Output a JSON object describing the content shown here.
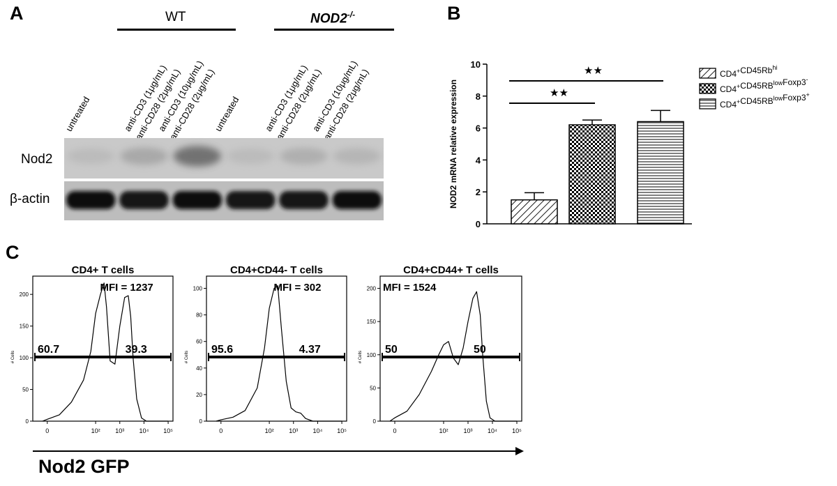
{
  "panelA": {
    "letter": "A",
    "groups": [
      {
        "label": "WT",
        "italic": false
      },
      {
        "label": "NOD2",
        "sup": "-/-",
        "italic": true
      }
    ],
    "lanes": [
      {
        "line1": "untreated",
        "line2": ""
      },
      {
        "line1": "anti-CD3 (1μg/mL)",
        "line2": "anti-CD28 (2μg/mL)"
      },
      {
        "line1": "anti-CD3 (10μg/mL)",
        "line2": "anti-CD28 (2μg/mL)"
      },
      {
        "line1": "untreated",
        "line2": ""
      },
      {
        "line1": "anti-CD3 (1μg/mL)",
        "line2": "anti-CD28 (2μg/mL)"
      },
      {
        "line1": "anti-CD3 (10μg/mL)",
        "line2": "anti-CD28 (2μg/mL)"
      }
    ],
    "blots": [
      {
        "label": "Nod2",
        "band_intensity": [
          0.15,
          0.3,
          0.6,
          0.15,
          0.25,
          0.2
        ]
      },
      {
        "label": "β-actin",
        "band_intensity": [
          0.9,
          0.85,
          0.9,
          0.85,
          0.85,
          0.9
        ]
      }
    ]
  },
  "panelB": {
    "letter": "B",
    "chart_data": {
      "type": "bar",
      "categories": [
        "CD4+CD45Rbhi",
        "CD4+CD45RBlowFoxp3-",
        "CD4+CD45RBlowFoxp3+"
      ],
      "values": [
        1.5,
        6.2,
        6.4
      ],
      "errors": [
        0.45,
        0.3,
        0.7
      ],
      "ylabel": "NOD2 mRNA relative expression",
      "ylim": [
        0,
        10
      ],
      "yticks": [
        "0",
        "2",
        "4",
        "6",
        "8",
        "10"
      ],
      "significance": [
        {
          "from": 0,
          "to": 1,
          "label": "★★"
        },
        {
          "from": 0,
          "to": 2,
          "label": "★★"
        }
      ],
      "legend": [
        {
          "base": "CD4",
          "sup1": "+",
          "mid": "CD45Rb",
          "sup2": "hi",
          "end": "",
          "sup3": "",
          "pattern": "diagonal"
        },
        {
          "base": "CD4",
          "sup1": "+",
          "mid": "CD45RB",
          "sup2": "low",
          "end": "Foxp3",
          "sup3": "-",
          "pattern": "checker"
        },
        {
          "base": "CD4",
          "sup1": "+",
          "mid": "CD45RB",
          "sup2": "low",
          "end": "Foxp3",
          "sup3": "+",
          "pattern": "horizontal"
        }
      ],
      "legend_position": "right"
    }
  },
  "panelC": {
    "letter": "C",
    "xlabel": "Nod2 GFP",
    "xticks": [
      "0",
      "10²",
      "10³",
      "10⁴",
      "10⁵"
    ],
    "ytick_label": "# Cells",
    "chart_data": [
      {
        "type": "line",
        "title": "CD4+ T cells",
        "mfi_label": "MFI = 1237",
        "gate_left": "60.7",
        "gate_right": "39.3",
        "ylim": [
          0,
          220
        ],
        "yticks": [
          "0",
          "50",
          "100",
          "150",
          "200"
        ],
        "x": [
          -0.2,
          0,
          0.5,
          1,
          1.5,
          1.8,
          2,
          2.2,
          2.35,
          2.45,
          2.6,
          2.8,
          3.0,
          3.2,
          3.35,
          3.45,
          3.55,
          3.7,
          3.9,
          4.1,
          5
        ],
        "y": [
          0,
          3,
          10,
          30,
          65,
          110,
          170,
          200,
          218,
          180,
          95,
          90,
          150,
          195,
          198,
          165,
          100,
          35,
          5,
          0,
          0
        ]
      },
      {
        "type": "line",
        "title": "CD4+CD44- T cells",
        "mfi_label": "MFI = 302",
        "gate_left": "95.6",
        "gate_right": "4.37",
        "ylim": [
          0,
          105
        ],
        "yticks": [
          "0",
          "20",
          "40",
          "60",
          "80",
          "100"
        ],
        "x": [
          -0.2,
          0,
          0.5,
          1,
          1.5,
          1.8,
          2.0,
          2.2,
          2.35,
          2.5,
          2.7,
          2.9,
          3.1,
          3.3,
          3.5,
          3.8,
          5
        ],
        "y": [
          0,
          1,
          3,
          8,
          25,
          55,
          85,
          100,
          102,
          70,
          30,
          10,
          7,
          6,
          2,
          0,
          0
        ]
      },
      {
        "type": "line",
        "title": "CD4+CD44+ T cells",
        "mfi_label": "MFI = 1524",
        "gate_left": "50",
        "gate_right": "50",
        "ylim": [
          0,
          210
        ],
        "yticks": [
          "0",
          "50",
          "100",
          "150",
          "200"
        ],
        "x": [
          -0.2,
          0,
          0.5,
          1,
          1.5,
          1.8,
          2.0,
          2.2,
          2.4,
          2.6,
          2.8,
          3.0,
          3.2,
          3.35,
          3.5,
          3.6,
          3.75,
          3.9,
          4.1,
          5
        ],
        "y": [
          0,
          5,
          15,
          40,
          75,
          100,
          115,
          120,
          95,
          85,
          110,
          150,
          185,
          195,
          160,
          100,
          30,
          5,
          0,
          0
        ]
      }
    ]
  }
}
